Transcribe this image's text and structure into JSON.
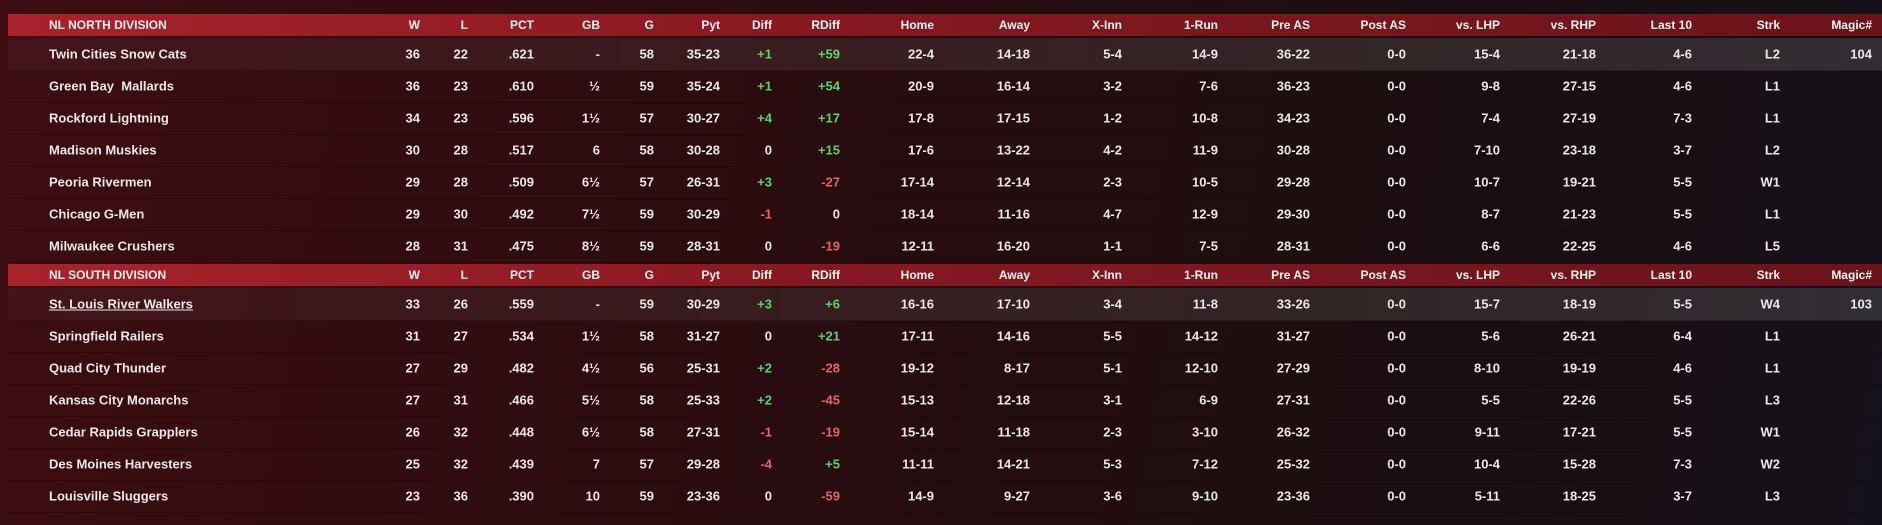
{
  "divisions": [
    {
      "header": [
        "NL NORTH DIVISION",
        "W",
        "L",
        "PCT",
        "GB",
        "G",
        "Pyt",
        "Diff",
        "RDiff",
        "Home",
        "Away",
        "X-Inn",
        "1-Run",
        "Pre AS",
        "Post AS",
        "vs. LHP",
        "vs. RHP",
        "Last 10",
        "Strk",
        "Magic#"
      ],
      "rows": [
        {
          "cells": [
            "Twin Cities Snow Cats",
            "36",
            "22",
            ".621",
            "-",
            "58",
            "35-23",
            "+1",
            "+59",
            "22-4",
            "14-18",
            "5-4",
            "14-9",
            "36-22",
            "0-0",
            "15-4",
            "21-18",
            "4-6",
            "L2",
            "104"
          ]
        },
        {
          "cells": [
            "Green Bay  Mallards",
            "36",
            "23",
            ".610",
            "½",
            "59",
            "35-24",
            "+1",
            "+54",
            "20-9",
            "16-14",
            "3-2",
            "7-6",
            "36-23",
            "0-0",
            "9-8",
            "27-15",
            "4-6",
            "L1"
          ]
        },
        {
          "cells": [
            "Rockford Lightning",
            "34",
            "23",
            ".596",
            "1½",
            "57",
            "30-27",
            "+4",
            "+17",
            "17-8",
            "17-15",
            "1-2",
            "10-8",
            "34-23",
            "0-0",
            "7-4",
            "27-19",
            "7-3",
            "L1"
          ]
        },
        {
          "cells": [
            "Madison Muskies",
            "30",
            "28",
            ".517",
            "6",
            "58",
            "30-28",
            "0",
            "+15",
            "17-6",
            "13-22",
            "4-2",
            "11-9",
            "30-28",
            "0-0",
            "7-10",
            "23-18",
            "3-7",
            "L2"
          ]
        },
        {
          "cells": [
            "Peoria Rivermen",
            "29",
            "28",
            ".509",
            "6½",
            "57",
            "26-31",
            "+3",
            "-27",
            "17-14",
            "12-14",
            "2-3",
            "10-5",
            "29-28",
            "0-0",
            "10-7",
            "19-21",
            "5-5",
            "W1"
          ]
        },
        {
          "cells": [
            "Chicago G-Men",
            "29",
            "30",
            ".492",
            "7½",
            "59",
            "30-29",
            "-1",
            "0",
            "18-14",
            "11-16",
            "4-7",
            "12-9",
            "29-30",
            "0-0",
            "8-7",
            "21-23",
            "5-5",
            "L1"
          ]
        },
        {
          "cells": [
            "Milwaukee Crushers",
            "28",
            "31",
            ".475",
            "8½",
            "59",
            "28-31",
            "0",
            "-19",
            "12-11",
            "16-20",
            "1-1",
            "7-5",
            "28-31",
            "0-0",
            "6-6",
            "22-25",
            "4-6",
            "L5"
          ]
        }
      ]
    },
    {
      "header": [
        "NL SOUTH DIVISION",
        "W",
        "L",
        "PCT",
        "GB",
        "G",
        "Pyt",
        "Diff",
        "RDiff",
        "Home",
        "Away",
        "X-Inn",
        "1-Run",
        "Pre AS",
        "Post AS",
        "vs. LHP",
        "vs. RHP",
        "Last 10",
        "Strk",
        "Magic#"
      ],
      "rows": [
        {
          "underline": true,
          "cells": [
            "St. Louis River Walkers",
            "33",
            "26",
            ".559",
            "-",
            "59",
            "30-29",
            "+3",
            "+6",
            "16-16",
            "17-10",
            "3-4",
            "11-8",
            "33-26",
            "0-0",
            "15-7",
            "18-19",
            "5-5",
            "W4",
            "103"
          ]
        },
        {
          "cells": [
            "Springfield Railers",
            "31",
            "27",
            ".534",
            "1½",
            "58",
            "31-27",
            "0",
            "+21",
            "17-11",
            "14-16",
            "5-5",
            "14-12",
            "31-27",
            "0-0",
            "5-6",
            "26-21",
            "6-4",
            "L1"
          ]
        },
        {
          "cells": [
            "Quad City Thunder",
            "27",
            "29",
            ".482",
            "4½",
            "56",
            "25-31",
            "+2",
            "-28",
            "19-12",
            "8-17",
            "5-1",
            "12-10",
            "27-29",
            "0-0",
            "8-10",
            "19-19",
            "4-6",
            "L1"
          ]
        },
        {
          "cells": [
            "Kansas City Monarchs",
            "27",
            "31",
            ".466",
            "5½",
            "58",
            "25-33",
            "+2",
            "-45",
            "15-13",
            "12-18",
            "3-1",
            "6-9",
            "27-31",
            "0-0",
            "5-5",
            "22-26",
            "5-5",
            "L3"
          ]
        },
        {
          "cells": [
            "Cedar Rapids Grapplers",
            "26",
            "32",
            ".448",
            "6½",
            "58",
            "27-31",
            "-1",
            "-19",
            "15-14",
            "11-18",
            "2-3",
            "3-10",
            "26-32",
            "0-0",
            "9-11",
            "17-21",
            "5-5",
            "W1"
          ]
        },
        {
          "cells": [
            "Des Moines Harvesters",
            "25",
            "32",
            ".439",
            "7",
            "57",
            "29-28",
            "-4",
            "+5",
            "11-11",
            "14-21",
            "5-3",
            "7-12",
            "25-32",
            "0-0",
            "10-4",
            "15-28",
            "7-3",
            "W2"
          ]
        },
        {
          "cells": [
            "Louisville Sluggers",
            "23",
            "36",
            ".390",
            "10",
            "59",
            "23-36",
            "0",
            "-59",
            "14-9",
            "9-27",
            "3-6",
            "9-10",
            "23-36",
            "0-0",
            "5-11",
            "18-25",
            "3-7",
            "L3"
          ]
        }
      ]
    }
  ]
}
